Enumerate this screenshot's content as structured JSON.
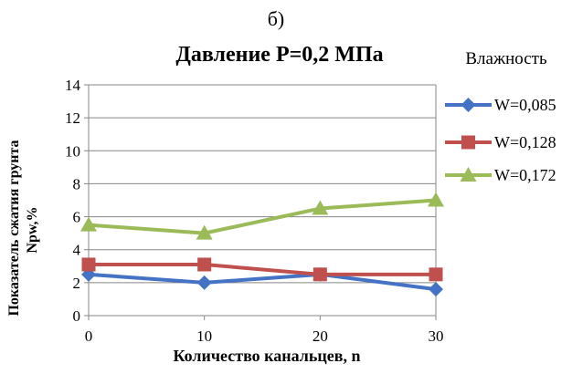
{
  "panel_label": "б)",
  "chart_data": {
    "type": "line",
    "title": "Давление Р=0,2 МПа",
    "xlabel": "Количество канальцев, n",
    "ylabel_line1": "Показатель сжатия  грунта",
    "ylabel_line2": "Npw,%",
    "legend_title": "Влажность",
    "legend_position": "right",
    "x": [
      0,
      10,
      20,
      30
    ],
    "x_ticks": [
      "0",
      "10",
      "20",
      "30"
    ],
    "ylim": [
      0,
      14
    ],
    "y_ticks": [
      "0",
      "2",
      "4",
      "6",
      "8",
      "10",
      "12",
      "14"
    ],
    "grid": true,
    "series": [
      {
        "name": "W=0,085",
        "values": [
          2.5,
          2.0,
          2.5,
          1.6
        ],
        "color": "#4472C4",
        "marker": "diamond"
      },
      {
        "name": "W=0,128",
        "values": [
          3.1,
          3.1,
          2.5,
          2.5
        ],
        "color": "#C0504D",
        "marker": "square"
      },
      {
        "name": "W=0,172",
        "values": [
          5.5,
          5.0,
          6.5,
          7.0
        ],
        "color": "#9BBB59",
        "marker": "triangle"
      }
    ]
  }
}
